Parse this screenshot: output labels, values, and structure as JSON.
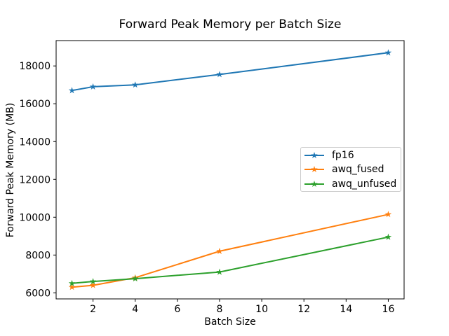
{
  "chart_data": {
    "type": "line",
    "title": "Forward Peak Memory per Batch Size",
    "xlabel": "Batch Size",
    "ylabel": "Forward Peak Memory (MB)",
    "x": [
      1,
      2,
      4,
      8,
      16
    ],
    "series": [
      {
        "name": "fp16",
        "color": "#1f77b4",
        "values": [
          16700,
          16900,
          17000,
          17550,
          18700
        ]
      },
      {
        "name": "awq_fused",
        "color": "#ff7f0e",
        "values": [
          6300,
          6400,
          6800,
          8200,
          10150
        ]
      },
      {
        "name": "awq_unfused",
        "color": "#2ca02c",
        "values": [
          6500,
          6600,
          6750,
          7100,
          8950
        ]
      }
    ],
    "xticks": [
      2,
      4,
      6,
      8,
      10,
      12,
      14,
      16
    ],
    "yticks": [
      6000,
      8000,
      10000,
      12000,
      14000,
      16000,
      18000
    ],
    "xlim": [
      0.25,
      16.75
    ],
    "ylim": [
      5680,
      19340
    ],
    "grid": false,
    "marker": "star",
    "legend_position": "center-right",
    "background": "#ffffff",
    "axis_color": "#000000"
  }
}
